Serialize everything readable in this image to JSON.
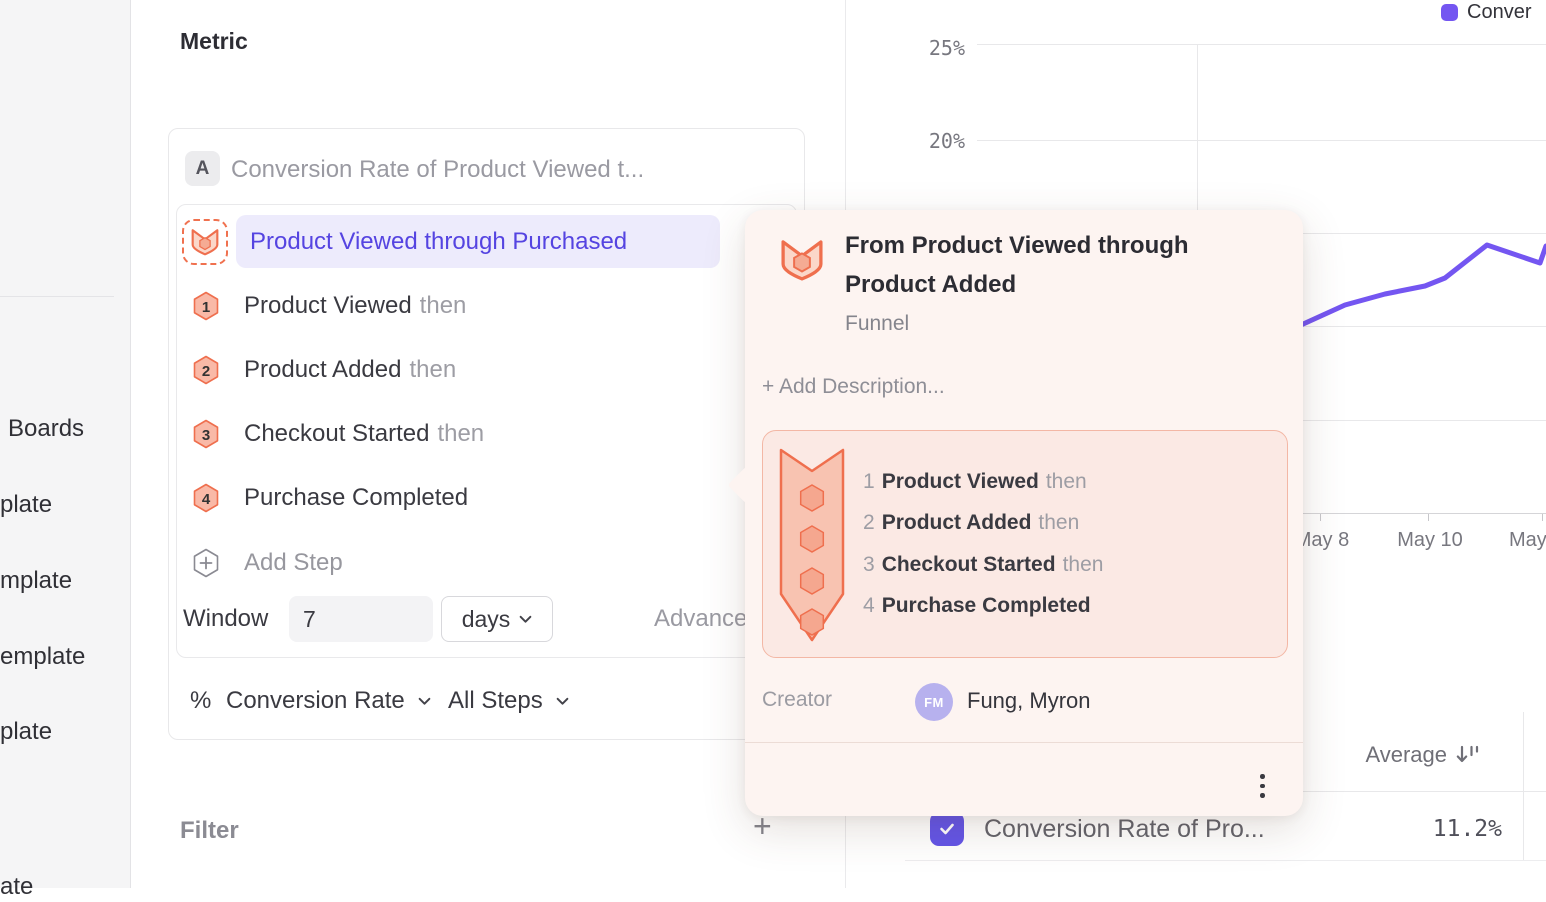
{
  "sidebar": {
    "items": [
      {
        "label": "Boards"
      },
      {
        "label": "plate"
      },
      {
        "label": "mplate"
      },
      {
        "label": "emplate"
      },
      {
        "label": "plate"
      },
      {
        "label": "ate"
      }
    ]
  },
  "metric_panel": {
    "heading": "Metric",
    "series_badge": "A",
    "series_title": "Conversion Rate of Product Viewed t...",
    "selected_event": "Product Viewed through Purchased",
    "add_step_label": "Add Step",
    "window_label": "Window",
    "window_value": "7",
    "window_unit": "days",
    "advanced_label": "Advanced",
    "percent_symbol": "%",
    "measure_label": "Conversion Rate",
    "steps_scope_label": "All Steps",
    "filter_label": "Filter",
    "filter_add_label": "+"
  },
  "funnel_steps": [
    {
      "num": "1",
      "name": "Product Viewed",
      "suffix": "then"
    },
    {
      "num": "2",
      "name": "Product Added",
      "suffix": "then"
    },
    {
      "num": "3",
      "name": "Checkout Started",
      "suffix": "then"
    },
    {
      "num": "4",
      "name": "Purchase Completed",
      "suffix": ""
    }
  ],
  "popover": {
    "title": "From Product Viewed through Product Added",
    "type_label": "Funnel",
    "add_description_label": "+ Add Description...",
    "creator_label": "Creator",
    "creator_initials": "FM",
    "creator_name": "Fung, Myron"
  },
  "chart": {
    "legend_label": "Conver",
    "accent_color": "#7456f1",
    "y_tick_labels": [
      "25%",
      "20%"
    ],
    "x_tick_labels": [
      "May 8",
      "May 10",
      "May"
    ]
  },
  "table": {
    "average_header": "Average",
    "row_name": "Conversion Rate of Pro...",
    "row_value": "11.2%"
  },
  "chart_data": {
    "type": "line",
    "title": "",
    "legend_entries": [
      "Conver (truncated: Conversion Rate ...)"
    ],
    "legend_position": "top-right",
    "grid": true,
    "x_tick_labels_visible": [
      "May 8",
      "May 10",
      "May"
    ],
    "y_tick_labels_visible": [
      "25%",
      "20%"
    ],
    "y_axis_implied_gridlines_pct": [
      25,
      20,
      15,
      10,
      5,
      0
    ],
    "series": [
      {
        "name": "Conversion Rate of Pro...",
        "color": "#7456f1",
        "visible_points_pct_estimated": [
          10.1,
          11.2,
          11.8,
          12.2,
          12.6,
          14.5,
          13.6,
          14.4
        ],
        "average_value": "11.2%",
        "note": "left half of plot hidden behind funnel details popover"
      }
    ],
    "line_points_px": "1290,330 1345,305 1385,294 1425,286 1445,278 1487,245 1540,263 1546,246"
  }
}
